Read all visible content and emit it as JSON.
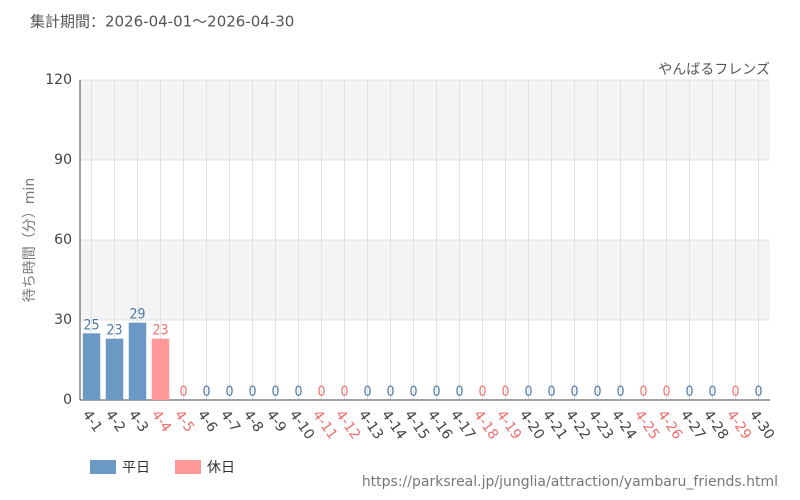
{
  "chart_data": {
    "type": "bar",
    "title": "集計期間：2026-04-01～2026-04-30",
    "subtitle": "やんばるフレンズ",
    "y_label": "待ち時間（分）min",
    "source": "https://parksreal.jp/junglia/attraction/yambaru_friends.html",
    "categories": [
      "4-1",
      "4-2",
      "4-3",
      "4-4",
      "4-5",
      "4-6",
      "4-7",
      "4-8",
      "4-9",
      "4-10",
      "4-11",
      "4-12",
      "4-13",
      "4-14",
      "4-15",
      "4-16",
      "4-17",
      "4-18",
      "4-19",
      "4-20",
      "4-21",
      "4-22",
      "4-23",
      "4-24",
      "4-25",
      "4-26",
      "4-27",
      "4-28",
      "4-29",
      "4-30"
    ],
    "series": [
      {
        "name": "平日",
        "color": "#6a9ac4",
        "label_color": "#4a78a8",
        "values": [
          25,
          23,
          29,
          null,
          null,
          0,
          0,
          0,
          0,
          0,
          null,
          null,
          0,
          0,
          0,
          0,
          0,
          null,
          null,
          0,
          0,
          0,
          0,
          0,
          null,
          null,
          0,
          0,
          null,
          0
        ]
      },
      {
        "name": "休日",
        "color": "#ff9999",
        "label_color": "#f07070",
        "values": [
          null,
          null,
          null,
          23,
          0,
          null,
          null,
          null,
          null,
          null,
          0,
          0,
          null,
          null,
          null,
          null,
          null,
          0,
          0,
          null,
          null,
          null,
          null,
          null,
          0,
          0,
          null,
          null,
          0,
          null
        ]
      }
    ],
    "ylim": [
      0,
      120
    ],
    "yticks": [
      0,
      30,
      60,
      90,
      120
    ],
    "grid": true
  }
}
